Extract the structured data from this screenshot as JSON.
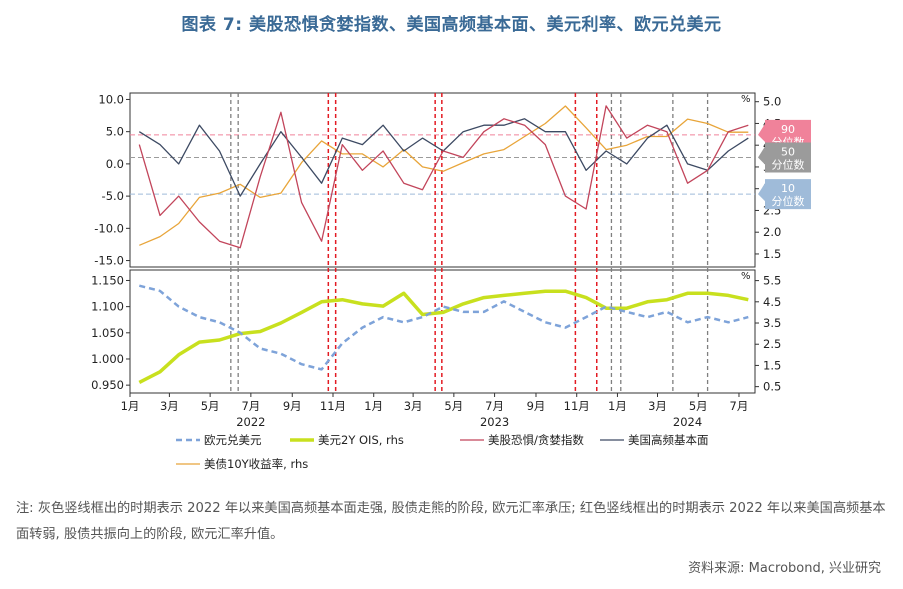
{
  "title": "图表 7: 美股恐惧贪婪指数、美国高频基本面、美元利率、欧元兑美元",
  "note": "注: 灰色竖线框出的时期表示 2022 年以来美国高频基本面走强, 股债走熊的阶段, 欧元汇率承压; 红色竖线框出的时期表示 2022 年以来美国高频基本面转弱, 股债共振向上的阶段, 欧元汇率升值。",
  "source": "资料来源: Macrobond, 兴业研究",
  "colors": {
    "eurusd": "#7ea3d9",
    "ois2y": "#c8e01e",
    "fear_greed": "#c2455b",
    "hf_fund": "#3d4a63",
    "ust10y": "#e8a53a",
    "red_vline": "#e31b23",
    "gray_vline": "#7f7f7f",
    "pct90": "#f0829a",
    "pct50": "#9b9b9b",
    "pct10": "#9fbbd9"
  },
  "chart_data": [
    {
      "type": "line",
      "panel": "top",
      "y_left_ticks": [
        "10.0",
        "5.0",
        "0.0",
        "-5.0",
        "-10.0",
        "-15.0"
      ],
      "y_left_range": [
        -16,
        11
      ],
      "y_right_unit": "%",
      "y_right_ticks": [
        "5.0",
        "4.5",
        "4.0",
        "3.5",
        "3.0",
        "2.5",
        "2.0",
        "1.5"
      ],
      "y_right_range": [
        1.2,
        5.2
      ],
      "percentile_lines": [
        {
          "label": "90 分位数",
          "value": 4.5
        },
        {
          "label": "50 分位数",
          "value": 1.0
        },
        {
          "label": "10 分位数",
          "value": -4.7
        }
      ],
      "series": [
        {
          "name": "美股恐惧/贪婪指数",
          "axis": "left",
          "x": [
            "2022-01",
            "2022-02",
            "2022-03",
            "2022-04",
            "2022-05",
            "2022-06",
            "2022-07",
            "2022-08",
            "2022-09",
            "2022-10",
            "2022-11",
            "2022-12",
            "2023-01",
            "2023-02",
            "2023-03",
            "2023-04",
            "2023-05",
            "2023-06",
            "2023-07",
            "2023-08",
            "2023-09",
            "2023-10",
            "2023-11",
            "2023-12",
            "2024-01",
            "2024-02",
            "2024-03",
            "2024-04",
            "2024-05",
            "2024-06",
            "2024-07"
          ],
          "values": [
            3,
            -8,
            -5,
            -9,
            -12,
            -13,
            -2,
            8,
            -6,
            -12,
            3,
            -1,
            2,
            -3,
            -4,
            2,
            1,
            5,
            7,
            6,
            3,
            -5,
            -7,
            9,
            4,
            6,
            5,
            -3,
            -1,
            5,
            6
          ]
        },
        {
          "name": "美国高频基本面",
          "axis": "left",
          "x": [
            "2022-01",
            "2022-02",
            "2022-03",
            "2022-04",
            "2022-05",
            "2022-06",
            "2022-07",
            "2022-08",
            "2022-09",
            "2022-10",
            "2022-11",
            "2022-12",
            "2023-01",
            "2023-02",
            "2023-03",
            "2023-04",
            "2023-05",
            "2023-06",
            "2023-07",
            "2023-08",
            "2023-09",
            "2023-10",
            "2023-11",
            "2023-12",
            "2024-01",
            "2024-02",
            "2024-03",
            "2024-04",
            "2024-05",
            "2024-06",
            "2024-07"
          ],
          "values": [
            5,
            3,
            0,
            6,
            2,
            -5,
            0,
            5,
            1,
            -3,
            4,
            3,
            6,
            2,
            4,
            2,
            5,
            6,
            6,
            7,
            5,
            5,
            -1,
            2,
            0,
            4,
            6,
            0,
            -1,
            2,
            4
          ]
        },
        {
          "name": "美债10Y收益率, rhs",
          "axis": "right",
          "x": [
            "2022-01",
            "2022-02",
            "2022-03",
            "2022-04",
            "2022-05",
            "2022-06",
            "2022-07",
            "2022-08",
            "2022-09",
            "2022-10",
            "2022-11",
            "2022-12",
            "2023-01",
            "2023-02",
            "2023-03",
            "2023-04",
            "2023-05",
            "2023-06",
            "2023-07",
            "2023-08",
            "2023-09",
            "2023-10",
            "2023-11",
            "2023-12",
            "2024-01",
            "2024-02",
            "2024-03",
            "2024-04",
            "2024-05",
            "2024-06",
            "2024-07"
          ],
          "values": [
            1.7,
            1.9,
            2.2,
            2.8,
            2.9,
            3.1,
            2.8,
            2.9,
            3.6,
            4.1,
            3.8,
            3.8,
            3.5,
            3.9,
            3.5,
            3.4,
            3.6,
            3.8,
            3.9,
            4.2,
            4.5,
            4.9,
            4.4,
            3.9,
            4.0,
            4.2,
            4.2,
            4.6,
            4.5,
            4.3,
            4.3
          ]
        }
      ]
    },
    {
      "type": "line",
      "panel": "bottom",
      "y_left_ticks": [
        "1.150",
        "1.100",
        "1.050",
        "1.000",
        "0.950"
      ],
      "y_left_range": [
        0.935,
        1.17
      ],
      "y_right_unit": "%",
      "y_right_ticks": [
        "5.5",
        "4.5",
        "3.5",
        "2.5",
        "1.5",
        "0.5"
      ],
      "y_right_range": [
        0.2,
        6.0
      ],
      "x_ticks": [
        "1月",
        "3月",
        "5月",
        "7月",
        "9月",
        "11月",
        "1月",
        "3月",
        "5月",
        "7月",
        "9月",
        "11月",
        "1月",
        "3月",
        "5月",
        "7月"
      ],
      "x_year_labels": [
        "2022",
        "2023",
        "2024"
      ],
      "series": [
        {
          "name": "欧元兑美元",
          "axis": "left",
          "x": [
            "2022-01",
            "2022-02",
            "2022-03",
            "2022-04",
            "2022-05",
            "2022-06",
            "2022-07",
            "2022-08",
            "2022-09",
            "2022-10",
            "2022-11",
            "2022-12",
            "2023-01",
            "2023-02",
            "2023-03",
            "2023-04",
            "2023-05",
            "2023-06",
            "2023-07",
            "2023-08",
            "2023-09",
            "2023-10",
            "2023-11",
            "2023-12",
            "2024-01",
            "2024-02",
            "2024-03",
            "2024-04",
            "2024-05",
            "2024-06",
            "2024-07"
          ],
          "values": [
            1.14,
            1.13,
            1.1,
            1.08,
            1.07,
            1.05,
            1.02,
            1.01,
            0.99,
            0.98,
            1.03,
            1.06,
            1.08,
            1.07,
            1.08,
            1.1,
            1.09,
            1.09,
            1.11,
            1.09,
            1.07,
            1.06,
            1.08,
            1.1,
            1.09,
            1.08,
            1.09,
            1.07,
            1.08,
            1.07,
            1.08
          ]
        },
        {
          "name": "美元2Y OIS, rhs",
          "axis": "right",
          "x": [
            "2022-01",
            "2022-02",
            "2022-03",
            "2022-04",
            "2022-05",
            "2022-06",
            "2022-07",
            "2022-08",
            "2022-09",
            "2022-10",
            "2022-11",
            "2022-12",
            "2023-01",
            "2023-02",
            "2023-03",
            "2023-04",
            "2023-05",
            "2023-06",
            "2023-07",
            "2023-08",
            "2023-09",
            "2023-10",
            "2023-11",
            "2023-12",
            "2024-01",
            "2024-02",
            "2024-03",
            "2024-04",
            "2024-05",
            "2024-06",
            "2024-07"
          ],
          "values": [
            0.7,
            1.2,
            2.0,
            2.6,
            2.7,
            3.0,
            3.1,
            3.5,
            4.0,
            4.5,
            4.6,
            4.4,
            4.3,
            4.9,
            3.9,
            4.0,
            4.4,
            4.7,
            4.8,
            4.9,
            5.0,
            5.0,
            4.7,
            4.2,
            4.2,
            4.5,
            4.6,
            4.9,
            4.9,
            4.8,
            4.6
          ]
        }
      ]
    }
  ],
  "vertical_lines": {
    "gray": [
      "2022-06-01",
      "2022-06-12",
      "2023-12-23",
      "2024-01-06",
      "2024-03-24",
      "2024-05-15"
    ],
    "red": [
      "2022-10-25",
      "2022-11-05",
      "2023-04-03",
      "2023-04-13",
      "2023-10-30",
      "2023-12-01"
    ]
  },
  "legend": [
    {
      "name": "欧元兑美元",
      "style": "dash",
      "color": "#7ea3d9"
    },
    {
      "name": "美元2Y OIS, rhs",
      "style": "thick",
      "color": "#c8e01e"
    },
    {
      "name": "美股恐惧/贪婪指数",
      "style": "thin",
      "color": "#c2455b"
    },
    {
      "name": "美国高频基本面",
      "style": "thin",
      "color": "#3d4a63"
    },
    {
      "name": "美债10Y收益率, rhs",
      "style": "thin",
      "color": "#e8a53a"
    }
  ]
}
